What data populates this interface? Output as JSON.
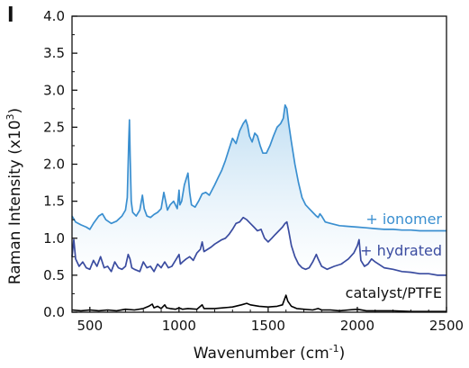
{
  "panel_label": "l",
  "chart_data": {
    "type": "line",
    "title": "",
    "xlabel": "Wavenumber (cm",
    "xlabel_superscript": "-1",
    "xlabel_suffix": ")",
    "ylabel": "Raman Intensity (x10",
    "ylabel_superscript": "3",
    "ylabel_suffix": ")",
    "xlim": [
      400,
      2500
    ],
    "ylim": [
      0,
      4.0
    ],
    "xticks": [
      500,
      1000,
      1500,
      2000,
      2500
    ],
    "xtick_labels": [
      "500",
      "1000",
      "1500",
      "2000",
      "2500"
    ],
    "yticks": [
      0,
      0.5,
      1.0,
      1.5,
      2.0,
      2.5,
      3.0,
      3.5,
      4.0
    ],
    "ytick_labels": [
      "0.0",
      "0.5",
      "1.0",
      "1.5",
      "2.0",
      "2.5",
      "3.0",
      "3.5",
      "4.0"
    ],
    "grid": false,
    "legend": "none",
    "shaded_region_between": [
      "+ ionomer",
      "+ hydrated"
    ],
    "series": [
      {
        "name": "+ ionomer",
        "color": "#3a8fd0",
        "x": [
          400,
          420,
          450,
          480,
          500,
          520,
          550,
          570,
          590,
          620,
          650,
          680,
          700,
          710,
          718,
          722,
          726,
          732,
          740,
          760,
          780,
          795,
          805,
          820,
          840,
          860,
          880,
          900,
          915,
          925,
          935,
          950,
          970,
          990,
          1000,
          1005,
          1015,
          1030,
          1050,
          1060,
          1070,
          1090,
          1110,
          1130,
          1150,
          1170,
          1200,
          1220,
          1240,
          1260,
          1280,
          1300,
          1320,
          1340,
          1360,
          1375,
          1385,
          1395,
          1410,
          1425,
          1440,
          1455,
          1470,
          1490,
          1510,
          1530,
          1550,
          1570,
          1585,
          1595,
          1605,
          1615,
          1630,
          1650,
          1670,
          1690,
          1710,
          1730,
          1750,
          1770,
          1780,
          1790,
          1800,
          1820,
          1850,
          1900,
          1950,
          2000,
          2050,
          2100,
          2150,
          2200,
          2250,
          2300,
          2350,
          2400,
          2450,
          2500
        ],
        "y": [
          1.3,
          1.22,
          1.18,
          1.15,
          1.12,
          1.2,
          1.3,
          1.33,
          1.25,
          1.2,
          1.23,
          1.3,
          1.38,
          1.55,
          2.3,
          2.6,
          2.1,
          1.5,
          1.35,
          1.3,
          1.38,
          1.58,
          1.4,
          1.3,
          1.28,
          1.32,
          1.35,
          1.4,
          1.62,
          1.5,
          1.38,
          1.45,
          1.5,
          1.4,
          1.65,
          1.45,
          1.5,
          1.72,
          1.88,
          1.62,
          1.45,
          1.42,
          1.5,
          1.6,
          1.62,
          1.58,
          1.72,
          1.82,
          1.92,
          2.05,
          2.2,
          2.35,
          2.28,
          2.45,
          2.55,
          2.6,
          2.52,
          2.38,
          2.3,
          2.42,
          2.38,
          2.25,
          2.15,
          2.15,
          2.25,
          2.38,
          2.5,
          2.55,
          2.62,
          2.8,
          2.75,
          2.55,
          2.3,
          2.0,
          1.75,
          1.55,
          1.45,
          1.4,
          1.35,
          1.3,
          1.28,
          1.33,
          1.3,
          1.22,
          1.2,
          1.17,
          1.16,
          1.15,
          1.14,
          1.13,
          1.12,
          1.12,
          1.11,
          1.11,
          1.1,
          1.1,
          1.1,
          1.1
        ]
      },
      {
        "name": "+ hydrated",
        "color": "#3a4ca0",
        "x": [
          400,
          410,
          420,
          440,
          460,
          480,
          500,
          520,
          540,
          560,
          580,
          600,
          620,
          640,
          660,
          680,
          700,
          715,
          725,
          735,
          750,
          780,
          800,
          820,
          840,
          860,
          880,
          900,
          920,
          940,
          960,
          980,
          1000,
          1008,
          1020,
          1040,
          1060,
          1080,
          1100,
          1120,
          1130,
          1140,
          1160,
          1180,
          1200,
          1220,
          1240,
          1260,
          1280,
          1300,
          1320,
          1340,
          1360,
          1380,
          1400,
          1420,
          1440,
          1460,
          1480,
          1500,
          1520,
          1540,
          1560,
          1580,
          1595,
          1605,
          1615,
          1630,
          1650,
          1670,
          1690,
          1710,
          1730,
          1750,
          1770,
          1780,
          1800,
          1830,
          1870,
          1910,
          1950,
          1980,
          2000,
          2010,
          2020,
          2040,
          2060,
          2080,
          2100,
          2150,
          2200,
          2250,
          2300,
          2350,
          2400,
          2450,
          2500
        ],
        "y": [
          0.75,
          0.98,
          0.72,
          0.62,
          0.68,
          0.6,
          0.58,
          0.7,
          0.62,
          0.75,
          0.6,
          0.62,
          0.55,
          0.68,
          0.6,
          0.58,
          0.62,
          0.78,
          0.72,
          0.6,
          0.58,
          0.55,
          0.68,
          0.6,
          0.62,
          0.55,
          0.65,
          0.6,
          0.68,
          0.6,
          0.62,
          0.7,
          0.78,
          0.65,
          0.68,
          0.72,
          0.75,
          0.7,
          0.8,
          0.85,
          0.95,
          0.82,
          0.85,
          0.88,
          0.92,
          0.95,
          0.98,
          1.0,
          1.05,
          1.12,
          1.2,
          1.22,
          1.28,
          1.25,
          1.2,
          1.15,
          1.1,
          1.12,
          1.0,
          0.95,
          1.0,
          1.05,
          1.1,
          1.15,
          1.2,
          1.22,
          1.1,
          0.9,
          0.75,
          0.65,
          0.6,
          0.58,
          0.6,
          0.68,
          0.78,
          0.72,
          0.62,
          0.58,
          0.62,
          0.65,
          0.72,
          0.8,
          0.9,
          0.98,
          0.7,
          0.62,
          0.65,
          0.72,
          0.68,
          0.6,
          0.58,
          0.55,
          0.54,
          0.52,
          0.52,
          0.5,
          0.5
        ]
      },
      {
        "name": "catalyst/PTFE",
        "color": "#000000",
        "x": [
          400,
          450,
          500,
          550,
          600,
          650,
          700,
          750,
          800,
          830,
          850,
          860,
          880,
          900,
          920,
          930,
          950,
          980,
          1000,
          1020,
          1050,
          1100,
          1130,
          1140,
          1160,
          1200,
          1250,
          1300,
          1350,
          1380,
          1400,
          1450,
          1500,
          1550,
          1580,
          1600,
          1610,
          1630,
          1660,
          1700,
          1750,
          1780,
          1800,
          1850,
          1900,
          1950,
          2000,
          2050,
          2100,
          2200,
          2300,
          2400,
          2500
        ],
        "y": [
          0.03,
          0.02,
          0.03,
          0.02,
          0.03,
          0.02,
          0.04,
          0.03,
          0.05,
          0.08,
          0.11,
          0.06,
          0.08,
          0.05,
          0.1,
          0.06,
          0.05,
          0.04,
          0.06,
          0.04,
          0.05,
          0.04,
          0.1,
          0.05,
          0.05,
          0.05,
          0.06,
          0.07,
          0.1,
          0.12,
          0.1,
          0.08,
          0.07,
          0.08,
          0.1,
          0.23,
          0.15,
          0.08,
          0.05,
          0.04,
          0.03,
          0.05,
          0.03,
          0.03,
          0.02,
          0.03,
          0.04,
          0.02,
          0.02,
          0.02,
          0.01,
          0.01,
          0.01
        ]
      }
    ]
  }
}
